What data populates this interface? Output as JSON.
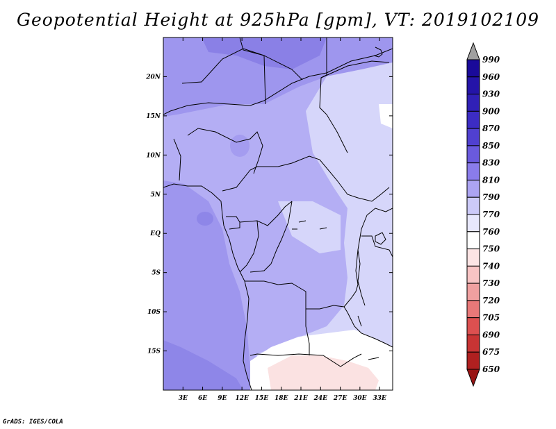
{
  "title": "Geopotential Height at 925hPa [gpm], VT: 2019102109",
  "footer": "GrADS: IGES/COLA",
  "map": {
    "lat_range": [
      -20,
      25
    ],
    "lon_range": [
      0,
      35
    ],
    "lat_ticks": [
      "20N",
      "15N",
      "10N",
      "5N",
      "EQ",
      "5S",
      "10S",
      "15S"
    ],
    "lon_ticks": [
      "3E",
      "6E",
      "9E",
      "12E",
      "15E",
      "18E",
      "21E",
      "24E",
      "27E",
      "30E",
      "33E"
    ]
  },
  "colorbar": {
    "labels": [
      "990",
      "960",
      "930",
      "900",
      "870",
      "850",
      "830",
      "810",
      "790",
      "770",
      "760",
      "750",
      "740",
      "730",
      "720",
      "705",
      "690",
      "675",
      "650"
    ],
    "colors": [
      "#a0a0a0",
      "#1a0a9a",
      "#2414a8",
      "#3020b6",
      "#3c2cc4",
      "#5040d0",
      "#6a5ade",
      "#8a7cea",
      "#aca4f2",
      "#cccaf8",
      "#e8e8fc",
      "#ffffff",
      "#fce4e4",
      "#f8c4c4",
      "#f0a0a0",
      "#e87878",
      "#dc5050",
      "#c83434",
      "#b02020",
      "#981414"
    ]
  }
}
